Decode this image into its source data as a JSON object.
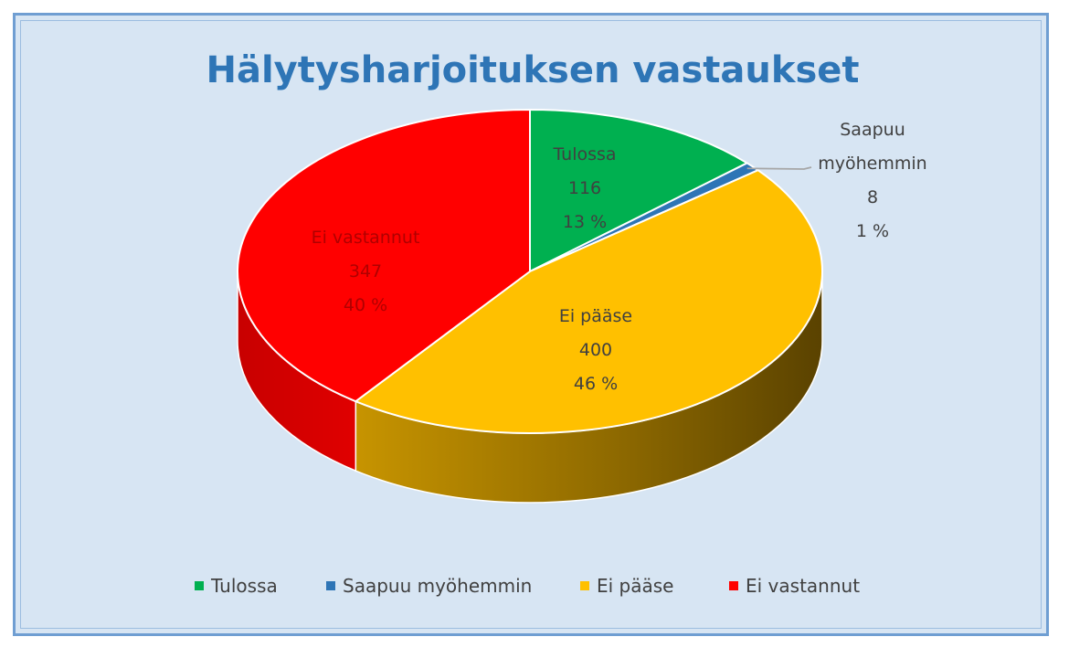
{
  "chart_data": {
    "type": "pie",
    "style": "3d",
    "title": "Hälytysharjoituksen vastaukset",
    "categories": [
      "Tulossa",
      "Saapuu myöhemmin",
      "Ei pääse",
      "Ei vastannut"
    ],
    "values": [
      116,
      8,
      400,
      347
    ],
    "percent_labels": [
      "13 %",
      "1 %",
      "46 %",
      "40 %"
    ],
    "colors": [
      "#00b050",
      "#2e75b6",
      "#ffc000",
      "#ff0000"
    ],
    "label_lines": {
      "Tulossa": [
        "Tulossa",
        "116",
        "13 %"
      ],
      "Saapuu myöhemmin": [
        "Saapuu",
        "myöhemmin",
        "8",
        "1 %"
      ],
      "Ei pääse": [
        "Ei pääse",
        "400",
        "46 %"
      ],
      "Ei vastannut": [
        "Ei vastannut",
        "347",
        "40 %"
      ]
    },
    "legend": {
      "entries": [
        "Tulossa",
        "Saapuu myöhemmin",
        "Ei pääse",
        "Ei vastannut"
      ],
      "placement": "bottom"
    },
    "background_color": "#d7e5f3",
    "title_color": "#2e75b6"
  }
}
